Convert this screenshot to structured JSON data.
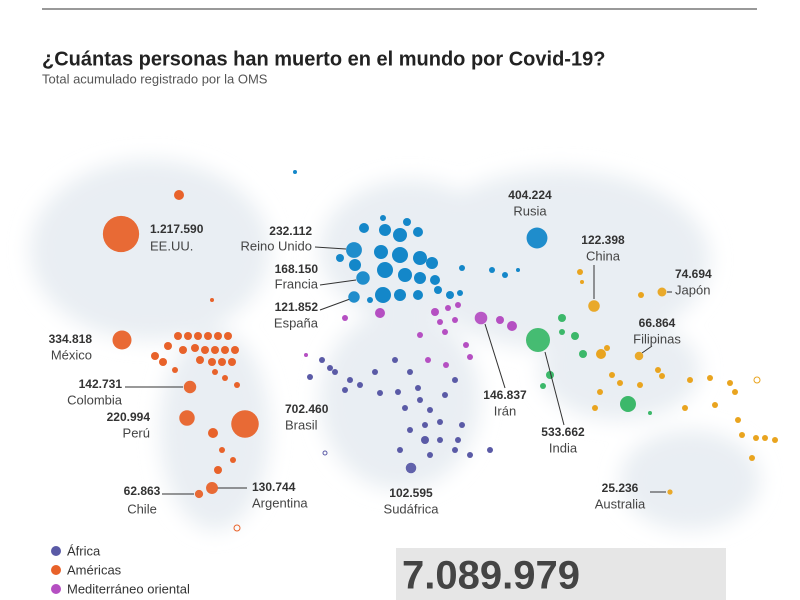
{
  "header": {
    "title": "¿Cuántas personas han muerto en el mundo por Covid-19?",
    "subtitle": "Total acumulado registrado por la OMS"
  },
  "regions": [
    {
      "name": "África",
      "color": "#5a5aa6"
    },
    {
      "name": "Américas",
      "color": "#e8622a"
    },
    {
      "name": "Mediterráneo oriental",
      "color": "#b54fc2"
    },
    {
      "color": "#1487c9"
    },
    {
      "color": "#3cb86a"
    },
    {
      "color": "#e9a41f"
    }
  ],
  "countries": [
    {
      "name": "EE.UU.",
      "value": 1217590,
      "label": "1.217.590",
      "region": 1
    },
    {
      "name": "México",
      "value": 334818,
      "label": "334.818",
      "region": 1
    },
    {
      "name": "Colombia",
      "value": 142731,
      "label": "142.731",
      "region": 1
    },
    {
      "name": "Perú",
      "value": 220994,
      "label": "220.994",
      "region": 1
    },
    {
      "name": "Brasil",
      "value": 702460,
      "label": "702.460",
      "region": 1
    },
    {
      "name": "Argentina",
      "value": 130744,
      "label": "130.744",
      "region": 1
    },
    {
      "name": "Chile",
      "value": 62863,
      "label": "62.863",
      "region": 1
    },
    {
      "name": "Reino Unido",
      "value": 232112,
      "label": "232.112",
      "region": 3
    },
    {
      "name": "Francia",
      "value": 168150,
      "label": "168.150",
      "region": 3
    },
    {
      "name": "España",
      "value": 121852,
      "label": "121.852",
      "region": 3
    },
    {
      "name": "Rusia",
      "value": 404224,
      "label": "404.224",
      "region": 3
    },
    {
      "name": "China",
      "value": 122398,
      "label": "122.398",
      "region": 5
    },
    {
      "name": "Japón",
      "value": 74694,
      "label": "74.694",
      "region": 5
    },
    {
      "name": "Filipinas",
      "value": 66864,
      "label": "66.864",
      "region": 5
    },
    {
      "name": "Irán",
      "value": 146837,
      "label": "146.837",
      "region": 2
    },
    {
      "name": "India",
      "value": 533662,
      "label": "533.662",
      "region": 4
    },
    {
      "name": "Sudáfrica",
      "value": 102595,
      "label": "102.595",
      "region": 0
    },
    {
      "name": "Australia",
      "value": 25236,
      "label": "25.236",
      "region": 5
    }
  ],
  "total": {
    "value": 7089979,
    "label": "7.089.979"
  }
}
